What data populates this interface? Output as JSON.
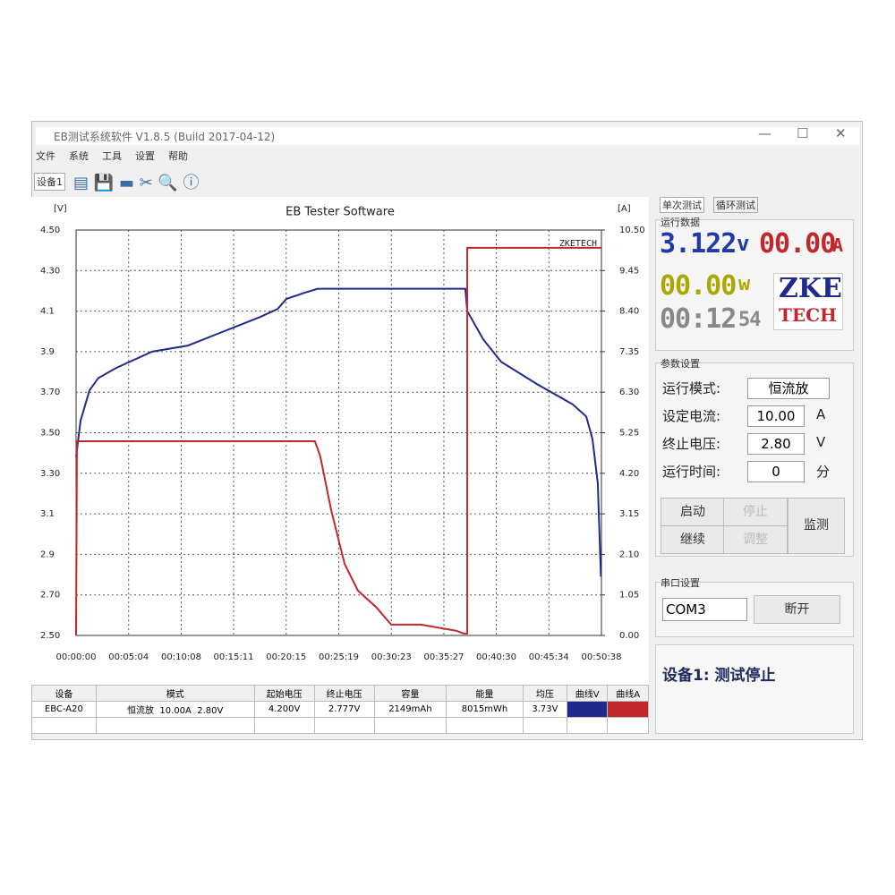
{
  "window": {
    "title": "EB测试系统软件 V1.8.5 (Build 2017-04-12)",
    "menu": [
      "文件",
      "系统",
      "工具",
      "设置",
      "帮助"
    ],
    "device_tab": "设备1"
  },
  "chart_data": {
    "type": "line",
    "title": "EB Tester Software",
    "y_label": "[V]",
    "y2_label": "[A]",
    "annotation": "ZKETECH",
    "xlim": [
      0,
      3038
    ],
    "xticks": [
      {
        "value": 0,
        "label": "00:00:00"
      },
      {
        "value": 304,
        "label": "00:05:04"
      },
      {
        "value": 608,
        "label": "00:10:08"
      },
      {
        "value": 911,
        "label": "00:15:11"
      },
      {
        "value": 1215,
        "label": "00:20:15"
      },
      {
        "value": 1519,
        "label": "00:25:19"
      },
      {
        "value": 1823,
        "label": "00:30:23"
      },
      {
        "value": 2127,
        "label": "00:35:27"
      },
      {
        "value": 2430,
        "label": "00:40:30"
      },
      {
        "value": 2734,
        "label": "00:45:34"
      },
      {
        "value": 3038,
        "label": "00:50:38"
      }
    ],
    "ylim": [
      2.5,
      4.5
    ],
    "yticks": [
      {
        "value": 2.5,
        "label": "2.50"
      },
      {
        "value": 2.7,
        "label": "2.70"
      },
      2.9,
      3.1,
      {
        "value": 3.3,
        "label": "3.30"
      },
      {
        "value": 3.5,
        "label": "3.50"
      },
      {
        "value": 3.7,
        "label": "3.70"
      },
      3.9,
      4.1,
      {
        "value": 4.3,
        "label": "4.30"
      },
      {
        "value": 4.5,
        "label": "4.50"
      }
    ],
    "y2lim": [
      0,
      10.5
    ],
    "y2ticks": [
      {
        "value": 0,
        "label": "0.00"
      },
      1.05,
      {
        "value": 2.1,
        "label": "2.10"
      },
      3.15,
      {
        "value": 4.2,
        "label": "4.20"
      },
      5.25,
      {
        "value": 6.3,
        "label": "6.30"
      },
      7.35,
      {
        "value": 8.4,
        "label": "8.40"
      },
      9.45,
      {
        "value": 10.5,
        "label": "10.50"
      }
    ],
    "grid": true,
    "series": [
      {
        "color": "#1f2a8c",
        "x": [
          0,
          26,
          78,
          129,
          233,
          440,
          647,
          854,
          1061,
          1165,
          1216,
          1320,
          1397,
          2251,
          2262,
          2355,
          2458,
          2665,
          2872,
          2950,
          2986,
          3017,
          3035
        ],
        "values": [
          3.38,
          3.56,
          3.71,
          3.77,
          3.82,
          3.9,
          3.93,
          4.0,
          4.07,
          4.11,
          4.16,
          4.19,
          4.21,
          4.21,
          4.1,
          3.96,
          3.85,
          3.74,
          3.64,
          3.58,
          3.47,
          3.25,
          2.79
        ]
      },
      {
        "color": "#c0282c",
        "axis": "y2",
        "x": [
          0,
          5,
          1381,
          1412,
          1475,
          1553,
          1630,
          1734,
          1822,
          1993,
          2200,
          2241,
          2262,
          2262,
          3038
        ],
        "values": [
          0,
          5.03,
          5.03,
          4.64,
          3.25,
          1.85,
          1.16,
          0.74,
          0.28,
          0.28,
          0.12,
          0.05,
          0.05,
          10.04,
          10.04
        ]
      }
    ]
  },
  "right_panel": {
    "tabs": [
      "单次测试",
      "循环测试"
    ],
    "run_group": "运行数据",
    "lcd": {
      "voltage": "3.122",
      "voltage_unit": "v",
      "current": "00.00",
      "current_unit": "A",
      "power": "00.00",
      "power_unit": "w",
      "time": "00:12",
      "seconds": "54"
    },
    "logo": [
      "ZKE",
      "TECH"
    ],
    "param_group": "参数设置",
    "params": [
      [
        "运行模式:",
        "恒流放",
        ""
      ],
      [
        "设定电流:",
        "10.00",
        "A"
      ],
      [
        "终止电压:",
        "2.80",
        "V"
      ],
      [
        "运行时间:",
        "0",
        "分"
      ]
    ],
    "buttons": [
      "启动",
      "停止",
      "继续",
      "调整",
      "监测"
    ],
    "port_group": "串口设置",
    "port": "COM3",
    "disconnect": "断开"
  },
  "status": "设备1: 测试停止",
  "table": {
    "headers": [
      "设备",
      "模式",
      "起始电压",
      "终止电压",
      "容量",
      "能量",
      "均压",
      "曲线V",
      "曲线A"
    ],
    "rows": [
      [
        "EBC-A20",
        "恒流放  10.00A  2.80V",
        "4.200V",
        "2.777V",
        "2149mAh",
        "8015mWh",
        "3.73V"
      ]
    ]
  }
}
